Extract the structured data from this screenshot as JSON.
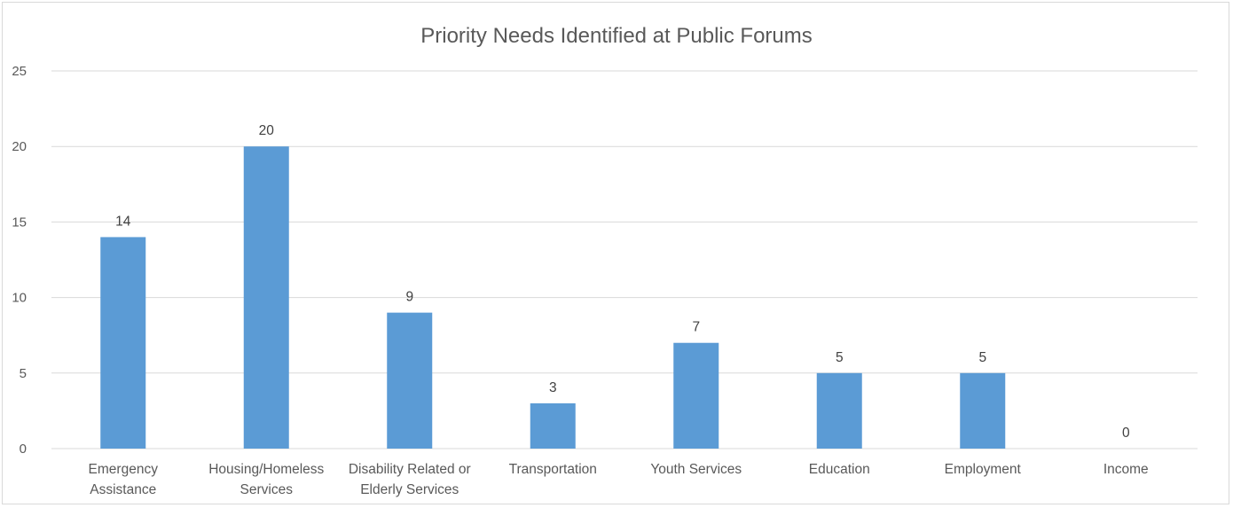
{
  "chart_data": {
    "type": "bar",
    "title": "Priority Needs Identified at Public Forums",
    "xlabel": "",
    "ylabel": "",
    "categories": [
      [
        "Emergency",
        "Assistance"
      ],
      [
        "Housing/Homeless",
        "Services"
      ],
      [
        "Disability Related or",
        "Elderly Services"
      ],
      [
        "Transportation"
      ],
      [
        "Youth Services"
      ],
      [
        "Education"
      ],
      [
        "Employment"
      ],
      [
        "Income"
      ]
    ],
    "values": [
      14,
      20,
      9,
      3,
      7,
      5,
      5,
      0
    ],
    "data_labels": [
      "14",
      "20",
      "9",
      "3",
      "7",
      "5",
      "5",
      "0"
    ],
    "ylim": [
      0,
      25
    ],
    "yticks": [
      0,
      5,
      10,
      15,
      20,
      25
    ],
    "ytick_labels": [
      "0",
      "5",
      "10",
      "15",
      "20",
      "25"
    ],
    "grid": true,
    "legend": "none",
    "bar_color": "#5b9bd5"
  }
}
